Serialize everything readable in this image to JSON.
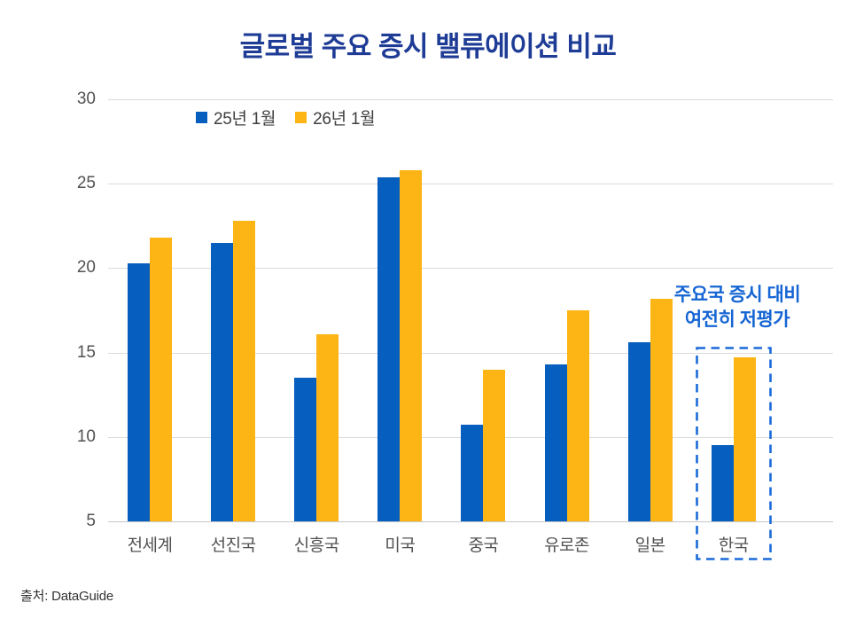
{
  "title": "글로벌 주요 증시 밸류에이션 비교",
  "source": "출처: DataGuide",
  "annotation": {
    "line1": "주요국 증시 대비",
    "line2": "여전히 저평가"
  },
  "highlight": {
    "category": "한국",
    "border_color": "#1B6AD9"
  },
  "colors": {
    "title": "#1E3C96",
    "annotation": "#1565D4",
    "series1": "#065EBE",
    "series2": "#FDB515",
    "axis_text": "#525252",
    "gridline": "#dadada"
  },
  "chart_data": {
    "type": "bar",
    "title": "글로벌 주요 증시 밸류에이션 비교",
    "categories": [
      "전세계",
      "선진국",
      "신흥국",
      "미국",
      "중국",
      "유로존",
      "일본",
      "한국"
    ],
    "series": [
      {
        "name": "25년 1월",
        "color": "#065EBE",
        "values": [
          20.3,
          21.5,
          13.5,
          25.4,
          10.7,
          14.3,
          15.6,
          9.5
        ]
      },
      {
        "name": "26년 1월",
        "color": "#FDB515",
        "values": [
          21.8,
          22.8,
          16.1,
          25.8,
          14.0,
          17.5,
          18.2,
          14.7
        ]
      }
    ],
    "xlabel": "",
    "ylabel": "",
    "ylim": [
      5,
      30
    ],
    "yticks": [
      5,
      10,
      15,
      20,
      25,
      30
    ],
    "grid": true,
    "legend_position": "top-left-inside"
  }
}
